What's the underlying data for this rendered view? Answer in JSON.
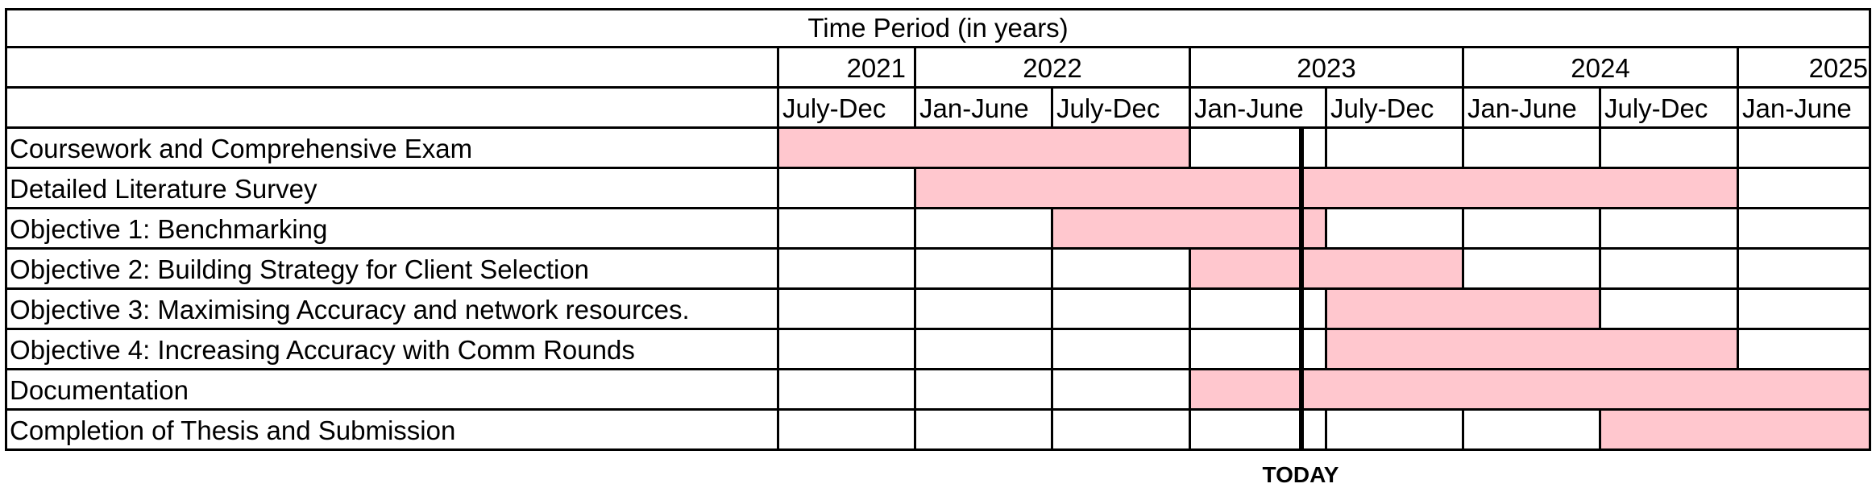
{
  "header_title": "Time Period (in years)",
  "years": [
    "2021",
    "2022",
    "2023",
    "2024",
    "2025"
  ],
  "periods": [
    "July-Dec",
    "Jan-June",
    "July-Dec",
    "Jan-June",
    "July-Dec",
    "Jan-June",
    "July-Dec",
    "Jan-June"
  ],
  "tasks": [
    {
      "label": "Coursework and Comprehensive Exam",
      "filled": [
        1,
        1,
        1,
        0,
        0,
        0,
        0,
        0
      ]
    },
    {
      "label": "Detailed Literature Survey",
      "filled": [
        0,
        1,
        1,
        1,
        1,
        1,
        1,
        0
      ]
    },
    {
      "label": "Objective 1: Benchmarking",
      "filled": [
        0,
        0,
        1,
        1,
        0,
        0,
        0,
        0
      ]
    },
    {
      "label": "Objective 2: Building Strategy for Client Selection",
      "filled": [
        0,
        0,
        0,
        1,
        1,
        0,
        0,
        0
      ]
    },
    {
      "label": "Objective 3: Maximising Accuracy and network resources.",
      "filled": [
        0,
        0,
        0,
        0,
        1,
        1,
        0,
        0
      ]
    },
    {
      "label": "Objective 4: Increasing Accuracy with Comm Rounds",
      "filled": [
        0,
        0,
        0,
        0,
        1,
        1,
        1,
        0
      ]
    },
    {
      "label": "Documentation",
      "filled": [
        0,
        0,
        0,
        1,
        1,
        1,
        1,
        1
      ]
    },
    {
      "label": "Completion of Thesis and Submission",
      "filled": [
        0,
        0,
        0,
        0,
        0,
        0,
        1,
        1
      ]
    }
  ],
  "today_label": "TODAY",
  "fill_color": "#ffc7ce"
}
